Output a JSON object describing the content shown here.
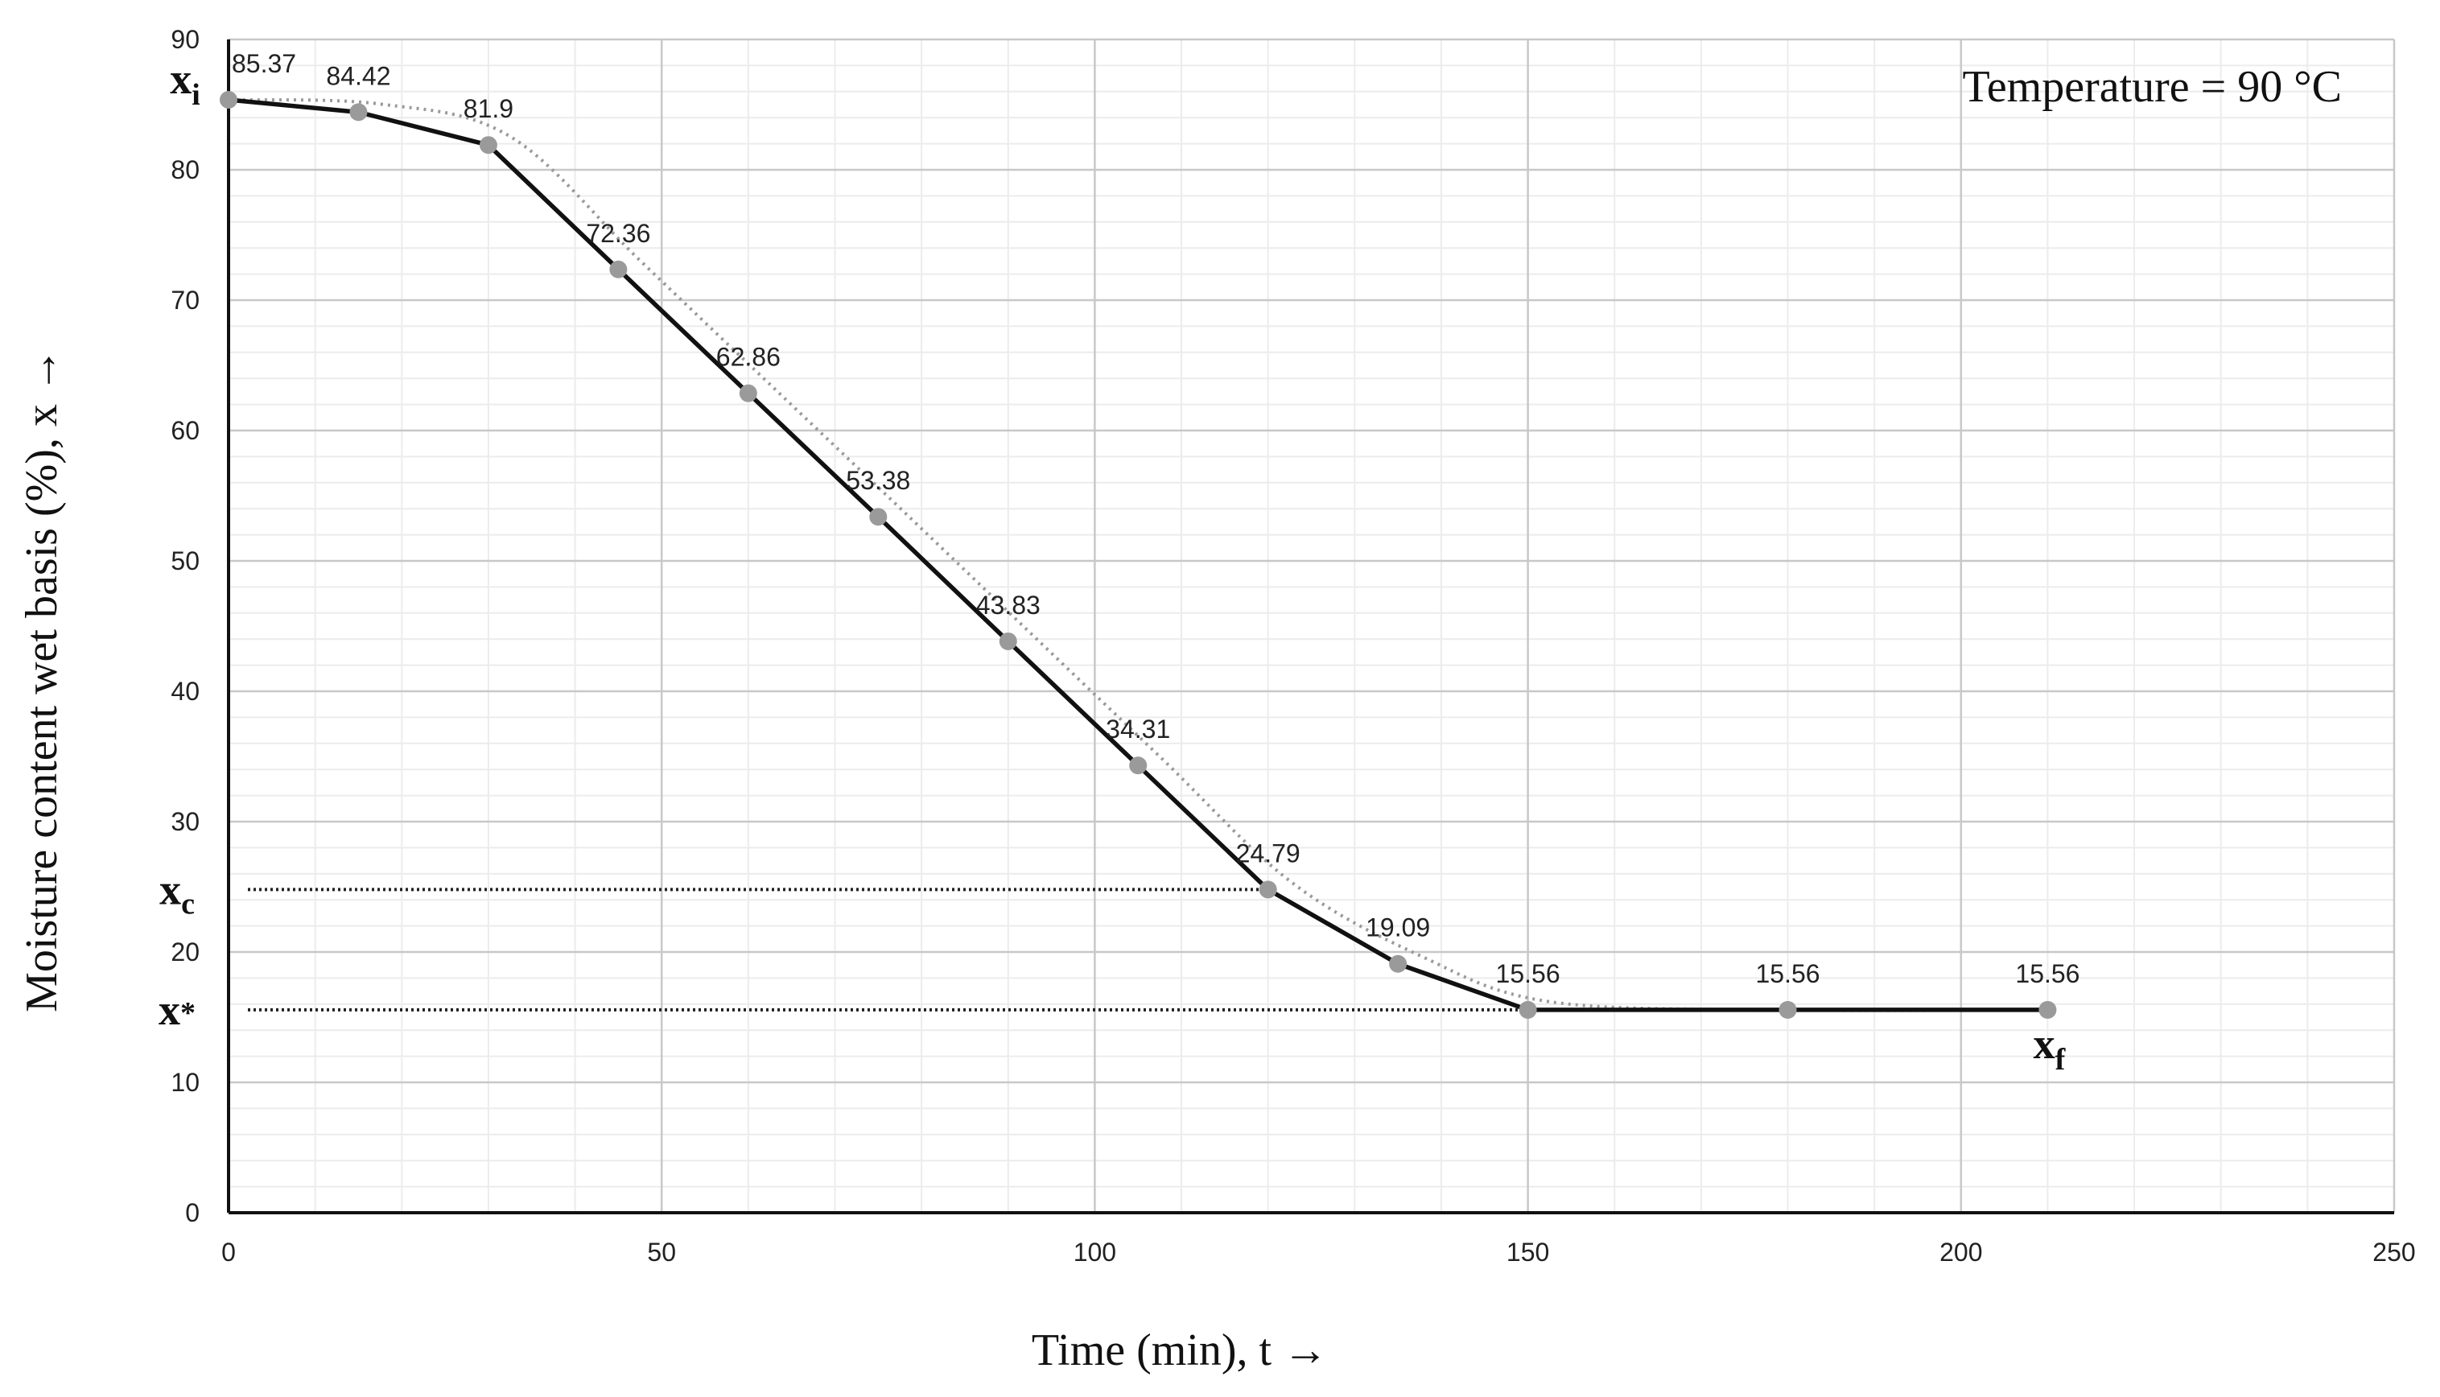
{
  "chart_data": {
    "type": "line",
    "title": "",
    "annotation": "Temperature = 90 °C",
    "xlabel": "Time (min), t →",
    "ylabel": "Moisture content wet basis (%), x →",
    "xlim": [
      0,
      250
    ],
    "ylim": [
      0,
      90
    ],
    "x_ticks": [
      "0",
      "50",
      "100",
      "150",
      "200",
      "250"
    ],
    "y_ticks": [
      "0",
      "10",
      "20",
      "30",
      "40",
      "50",
      "60",
      "70",
      "80",
      "90"
    ],
    "grid": true,
    "series": [
      {
        "x": [
          0,
          15,
          30,
          45,
          60,
          75,
          90,
          105,
          120,
          135,
          150,
          180,
          210
        ],
        "y": [
          85.37,
          84.42,
          81.9,
          72.36,
          62.86,
          53.38,
          43.83,
          34.31,
          24.79,
          19.09,
          15.56,
          15.56,
          15.56
        ],
        "labels": [
          "85.37",
          "84.42",
          "81.9",
          "72.36",
          "62.86",
          "53.38",
          "43.83",
          "34.31",
          "24.79",
          "19.09",
          "15.56",
          "15.56",
          "15.56"
        ],
        "color": "#111111",
        "marker_color": "#9a9a9a"
      }
    ],
    "smoothed_trend": {
      "color": "#9a9a9a",
      "style": "dotted"
    },
    "reference_lines": [
      {
        "label": "x",
        "sub": "c",
        "y": 24.79,
        "x_end": 120
      },
      {
        "label": "x",
        "sub": "*",
        "y": 15.56,
        "x_end": 210
      }
    ],
    "point_markers": [
      {
        "label": "x",
        "sub": "i",
        "x": 0,
        "y": 85.37
      },
      {
        "label": "x",
        "sub": "f",
        "x": 210,
        "y": 15.56
      }
    ]
  }
}
